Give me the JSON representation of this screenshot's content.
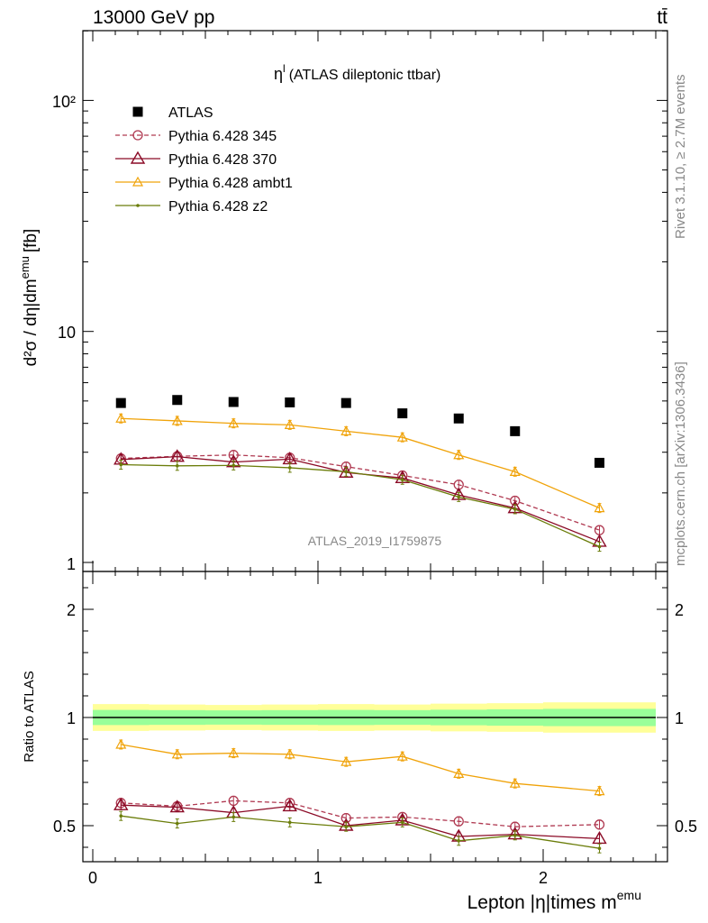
{
  "header": {
    "left": "13000 GeV pp",
    "right": "tt̄"
  },
  "side_labels": {
    "rivet": "Rivet 3.1.10, ≥ 2.7M events",
    "mcplots": "mcplots.cern.ch [arXiv:1306.3436]"
  },
  "colors": {
    "atlas": "#000000",
    "p345": "#b03a52",
    "p370": "#8b0a26",
    "ambt1": "#f0a30a",
    "z2": "#6b7d0a",
    "band_outer": "#ffff99",
    "band_inner": "#99ff99"
  },
  "chart_data": [
    {
      "type": "scatter",
      "title": "η",
      "title_sup": "l",
      "title_rest": "(ATLAS dileptonic ttbar)",
      "watermark": "ATLAS_2019_I1759875",
      "ylabel": "d²σ / dη|dm",
      "ylabel_sup": "emu",
      "ylabel_unit": "[fb]",
      "yscale": "log",
      "ylim": [
        0.9,
        200
      ],
      "xlim": [
        -0.1,
        2.55
      ],
      "yticks": [
        "1",
        "10",
        "10²"
      ],
      "x": [
        0.125,
        0.375,
        0.625,
        0.875,
        1.125,
        1.375,
        1.625,
        1.875,
        2.25
      ],
      "series": [
        {
          "name": "ATLAS",
          "key": "atlas",
          "style": "square",
          "values": [
            4.9,
            5.05,
            4.95,
            4.93,
            4.9,
            4.42,
            4.2,
            3.7,
            2.7
          ]
        },
        {
          "name": "Pythia 6.428 345",
          "key": "p345",
          "style": "circle-dashed",
          "values": [
            2.82,
            2.88,
            2.92,
            2.84,
            2.6,
            2.38,
            2.17,
            1.85,
            1.38
          ]
        },
        {
          "name": "Pythia 6.428 370",
          "key": "p370",
          "style": "triangle",
          "values": [
            2.79,
            2.87,
            2.72,
            2.8,
            2.45,
            2.32,
            1.96,
            1.72,
            1.23
          ]
        },
        {
          "name": "Pythia 6.428 ambt1",
          "key": "ambt1",
          "style": "triangle-small",
          "values": [
            4.2,
            4.1,
            4.0,
            3.94,
            3.7,
            3.48,
            2.92,
            2.47,
            1.72
          ]
        },
        {
          "name": "Pythia 6.428 z2",
          "key": "z2",
          "style": "dot",
          "values": [
            2.65,
            2.62,
            2.63,
            2.57,
            2.47,
            2.28,
            1.92,
            1.7,
            1.17
          ]
        }
      ]
    },
    {
      "type": "line",
      "ylabel": "Ratio to ATLAS",
      "xlabel": "Lepton |η|times m",
      "xlabel_sup": "emu",
      "ylim": [
        0.3,
        2.4
      ],
      "xlim": [
        -0.1,
        2.55
      ],
      "yticks": [
        "0.5",
        "1",
        "2"
      ],
      "xticks": [
        "0",
        "1",
        "2"
      ],
      "x": [
        0.125,
        0.375,
        0.625,
        0.875,
        1.125,
        1.375,
        1.625,
        1.875,
        2.25
      ],
      "series": [
        {
          "key": "p345",
          "values": [
            0.605,
            0.59,
            0.615,
            0.605,
            0.535,
            0.54,
            0.52,
            0.495,
            0.505
          ]
        },
        {
          "key": "p370",
          "values": [
            0.595,
            0.585,
            0.56,
            0.59,
            0.5,
            0.525,
            0.45,
            0.46,
            0.44
          ]
        },
        {
          "key": "ambt1",
          "values": [
            0.875,
            0.83,
            0.835,
            0.83,
            0.795,
            0.82,
            0.74,
            0.695,
            0.66
          ]
        },
        {
          "key": "z2",
          "values": [
            0.545,
            0.51,
            0.54,
            0.515,
            0.495,
            0.515,
            0.43,
            0.455,
            0.395
          ]
        }
      ]
    }
  ]
}
